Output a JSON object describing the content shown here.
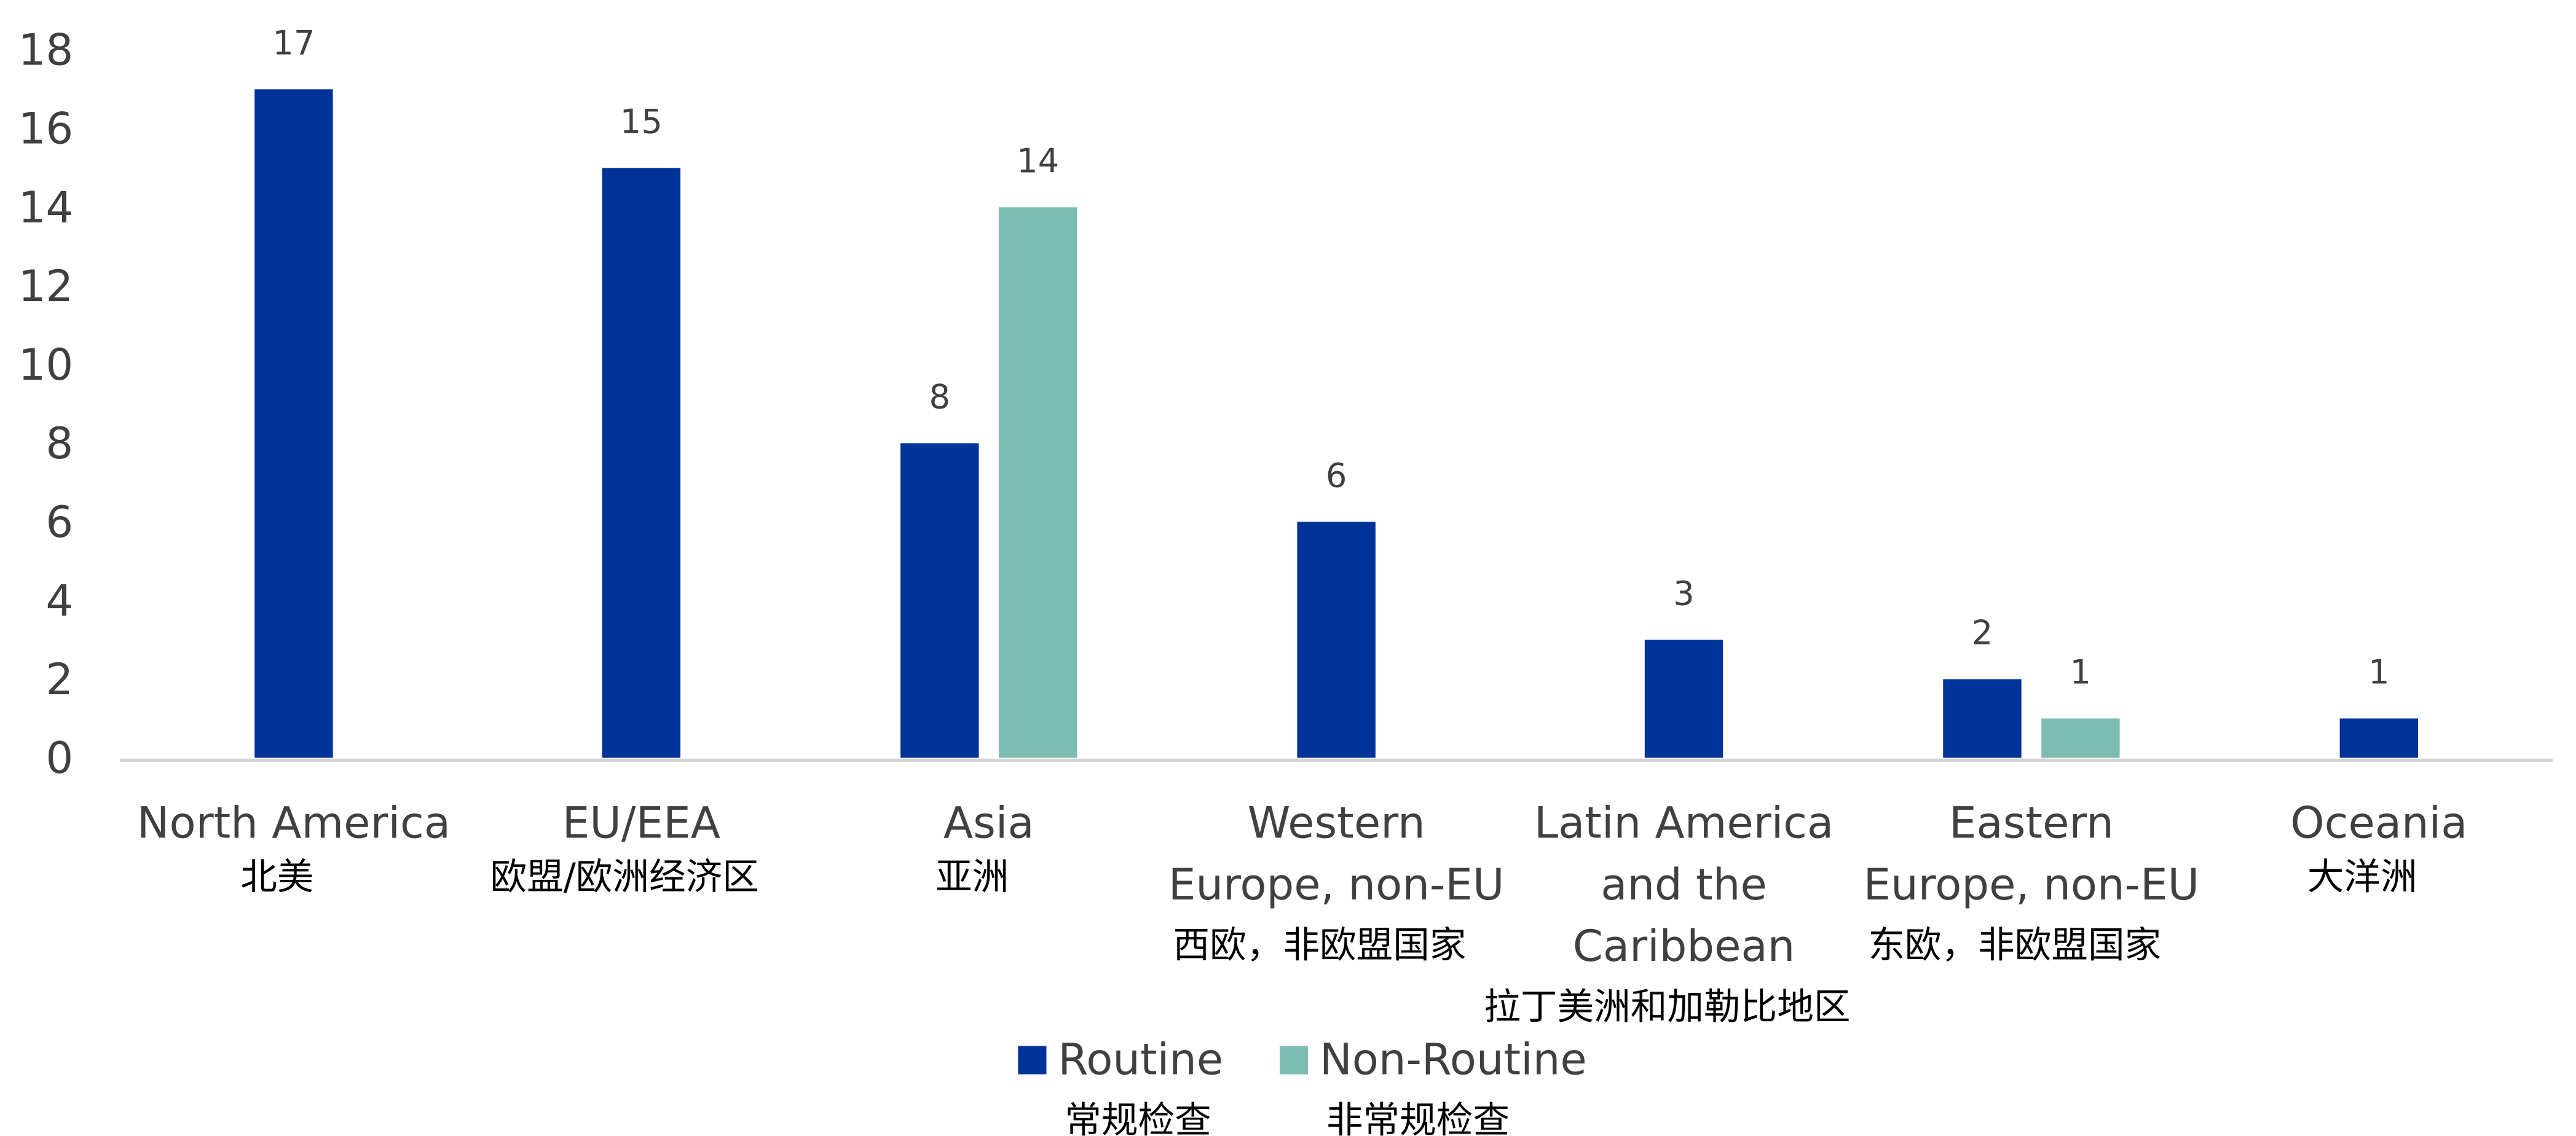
{
  "chart_data": {
    "type": "bar",
    "categories": [
      {
        "en": [
          "North America"
        ],
        "zh": "北美"
      },
      {
        "en": [
          "EU/EEA"
        ],
        "zh": "欧盟/欧洲经济区"
      },
      {
        "en": [
          "Asia"
        ],
        "zh": "亚洲"
      },
      {
        "en": [
          "Western",
          "Europe, non-EU"
        ],
        "zh": "西欧，非欧盟国家"
      },
      {
        "en": [
          "Latin America",
          "and the",
          "Caribbean"
        ],
        "zh": "拉丁美洲和加勒比地区"
      },
      {
        "en": [
          "Eastern",
          "Europe, non-EU"
        ],
        "zh": "东欧，非欧盟国家"
      },
      {
        "en": [
          "Oceania"
        ],
        "zh": "大洋洲"
      }
    ],
    "series": [
      {
        "name": "Routine",
        "name_zh": "常规检查",
        "color": "#003399",
        "values": [
          17,
          15,
          8,
          6,
          3,
          2,
          1
        ]
      },
      {
        "name": "Non-Routine",
        "name_zh": "非常规检查",
        "color": "#7dbcb2",
        "values": [
          null,
          null,
          14,
          null,
          null,
          1,
          null
        ]
      }
    ],
    "ylim": [
      0,
      18
    ],
    "yticks": [
      0,
      2,
      4,
      6,
      8,
      10,
      12,
      14,
      16,
      18
    ],
    "data_labels": true,
    "gridlines": false,
    "legend_position": "bottom"
  }
}
